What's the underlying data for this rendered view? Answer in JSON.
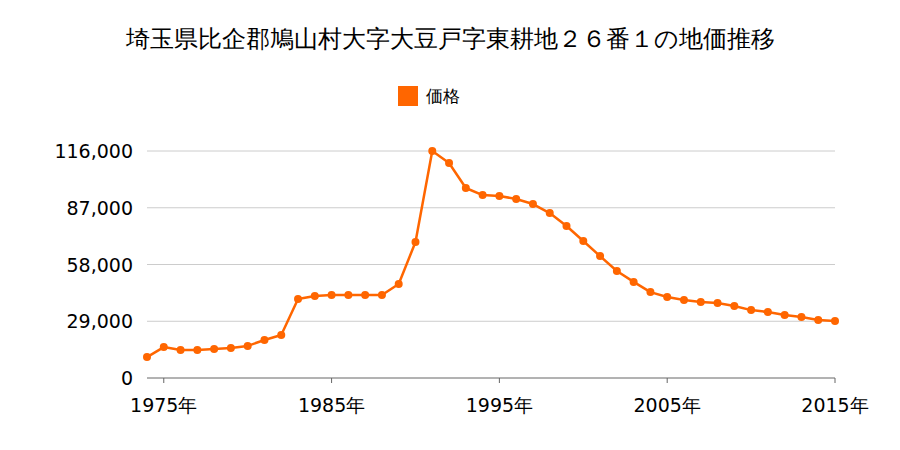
{
  "chart_data": {
    "type": "line",
    "title": "埼玉県比企郡鳩山村大字大豆戸字東耕地２６番１の地価推移",
    "x": [
      1974,
      1975,
      1976,
      1977,
      1978,
      1979,
      1980,
      1981,
      1982,
      1983,
      1984,
      1985,
      1986,
      1987,
      1988,
      1989,
      1990,
      1991,
      1992,
      1993,
      1994,
      1995,
      1996,
      1997,
      1998,
      1999,
      2000,
      2001,
      2002,
      2003,
      2004,
      2005,
      2006,
      2007,
      2008,
      2009,
      2010,
      2011,
      2012,
      2013,
      2014,
      2015
    ],
    "series": [
      {
        "name": "価格",
        "color": "#ff6600",
        "marker": "circle",
        "values": [
          10700,
          15800,
          14300,
          14300,
          14800,
          15300,
          16400,
          19400,
          22000,
          40400,
          41900,
          42400,
          42400,
          42400,
          42400,
          48000,
          69500,
          116000,
          109900,
          97100,
          93500,
          93000,
          91500,
          88900,
          84300,
          77700,
          70000,
          62300,
          54700,
          49100,
          43900,
          41400,
          39900,
          38800,
          38300,
          36800,
          34700,
          33700,
          32200,
          31200,
          29600,
          29100
        ]
      }
    ],
    "xlim": [
      1974,
      2015
    ],
    "xticks": [
      {
        "value": 1975,
        "label": "1975年"
      },
      {
        "value": 1985,
        "label": "1985年"
      },
      {
        "value": 1995,
        "label": "1995年"
      },
      {
        "value": 2005,
        "label": "2005年"
      },
      {
        "value": 2015,
        "label": "2015年"
      }
    ],
    "ylim": [
      0,
      116000
    ],
    "yticks": [
      0,
      {
        "value": 29000,
        "label": "29,000"
      },
      {
        "value": 58000,
        "label": "58,000"
      },
      {
        "value": 87000,
        "label": "87,000"
      },
      {
        "value": 116000,
        "label": "116,000"
      }
    ],
    "grid": true,
    "legend": "top"
  }
}
